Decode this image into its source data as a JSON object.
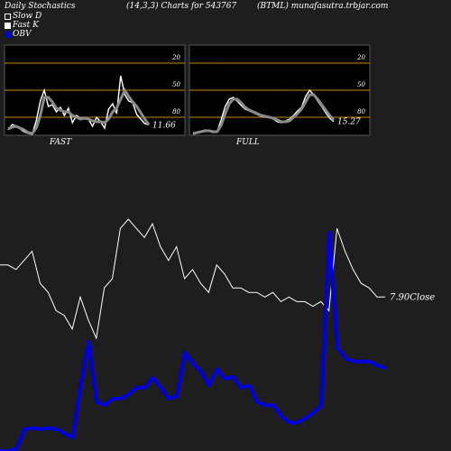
{
  "header": {
    "left": "Daily Stochastics",
    "center": "(14,3,3) Charts for 543767",
    "right": "(BTML) munafasutra.trbjar.com"
  },
  "legend": [
    {
      "label": "Slow  D",
      "color": "#ffffff",
      "style": "hollow"
    },
    {
      "label": "Fast K",
      "color": "#ffffff",
      "style": "filled"
    },
    {
      "label": "OBV",
      "color": "#0000dd",
      "style": "filled"
    }
  ],
  "colors": {
    "background": "#1e1e1e",
    "panel": "#000000",
    "reference_line": "#c8860a",
    "price_line": "#ffffff",
    "obv_line": "#0000dd"
  },
  "chart_data": [
    {
      "type": "line",
      "panel": "FAST",
      "ylim": [
        0,
        100
      ],
      "reference_lines": [
        20,
        50,
        80
      ],
      "tick_labels": [
        "80",
        "50",
        "20"
      ],
      "last_value_label": "11.66",
      "series": [
        {
          "name": "Fast K",
          "values": [
            6,
            12,
            10,
            7,
            4,
            2,
            1,
            16,
            38,
            50,
            32,
            34,
            26,
            31,
            22,
            30,
            14,
            22,
            19,
            20,
            18,
            10,
            20,
            15,
            8,
            29,
            35,
            24,
            66,
            45,
            38,
            36,
            23,
            18,
            13,
            11.66
          ]
        },
        {
          "name": "Slow D",
          "values": [
            7,
            9,
            10,
            8,
            6,
            3,
            2,
            8,
            22,
            42,
            42,
            37,
            30,
            28,
            26,
            26,
            22,
            20,
            18,
            19,
            18,
            16,
            15,
            15,
            14,
            18,
            26,
            30,
            40,
            50,
            43,
            37,
            32,
            25,
            18,
            12
          ]
        }
      ]
    },
    {
      "type": "line",
      "panel": "FULL",
      "ylim": [
        0,
        100
      ],
      "reference_lines": [
        20,
        50,
        80
      ],
      "tick_labels": [
        "80",
        "50",
        "20"
      ],
      "last_value_label": "15.27",
      "series": [
        {
          "name": "Fast K",
          "values": [
            1,
            3,
            4,
            6,
            5,
            3,
            4,
            17,
            32,
            40,
            42,
            38,
            33,
            29,
            27,
            25,
            23,
            21,
            20,
            20,
            18,
            15,
            14,
            16,
            18,
            22,
            27,
            31,
            43,
            50,
            45,
            38,
            32,
            25,
            19,
            15.27
          ]
        },
        {
          "name": "Slow D",
          "values": [
            2,
            3,
            4,
            5,
            5,
            4,
            4,
            11,
            24,
            35,
            40,
            40,
            36,
            31,
            28,
            26,
            24,
            22,
            21,
            20,
            19,
            17,
            15,
            15,
            16,
            20,
            24,
            29,
            37,
            45,
            45,
            40,
            34,
            28,
            22,
            17
          ]
        }
      ]
    },
    {
      "type": "line",
      "panel": "price_obv",
      "close_label": "7.90Close",
      "series": [
        {
          "name": "Close",
          "values": [
            8.6,
            8.6,
            8.5,
            8.7,
            8.9,
            8.2,
            8.0,
            7.6,
            7.5,
            7.2,
            7.9,
            7.4,
            7.0,
            8.1,
            8.3,
            9.4,
            9.6,
            9.4,
            9.2,
            9.5,
            9.0,
            8.7,
            9.0,
            8.3,
            8.5,
            8.2,
            8.0,
            8.6,
            8.4,
            8.1,
            8.1,
            8.0,
            8.0,
            7.9,
            8.0,
            7.8,
            7.9,
            7.8,
            7.8,
            7.7,
            7.8,
            7.6,
            9.4,
            8.9,
            8.5,
            8.2,
            8.1,
            7.9,
            7.9
          ]
        },
        {
          "values": [
            0,
            0,
            2,
            20,
            21,
            20,
            21,
            20,
            16,
            12,
            60,
            100,
            45,
            42,
            48,
            48,
            52,
            58,
            58,
            67,
            58,
            48,
            50,
            90,
            80,
            73,
            60,
            75,
            66,
            68,
            58,
            60,
            45,
            42,
            42,
            32,
            26,
            26,
            30,
            35,
            42,
            200,
            95,
            85,
            82,
            82,
            82,
            78,
            76
          ]
        }
      ]
    }
  ],
  "panel_labels": {
    "fast": "FAST",
    "full": "FULL"
  }
}
